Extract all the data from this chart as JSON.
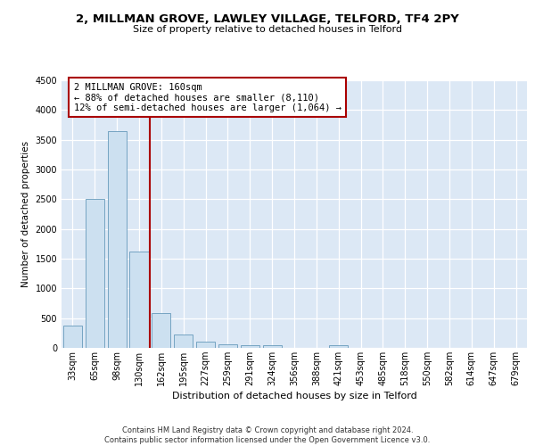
{
  "title": "2, MILLMAN GROVE, LAWLEY VILLAGE, TELFORD, TF4 2PY",
  "subtitle": "Size of property relative to detached houses in Telford",
  "xlabel": "Distribution of detached houses by size in Telford",
  "ylabel": "Number of detached properties",
  "categories": [
    "33sqm",
    "65sqm",
    "98sqm",
    "130sqm",
    "162sqm",
    "195sqm",
    "227sqm",
    "259sqm",
    "291sqm",
    "324sqm",
    "356sqm",
    "388sqm",
    "421sqm",
    "453sqm",
    "485sqm",
    "518sqm",
    "550sqm",
    "582sqm",
    "614sqm",
    "647sqm",
    "679sqm"
  ],
  "values": [
    370,
    2500,
    3650,
    1620,
    580,
    220,
    110,
    60,
    45,
    40,
    0,
    0,
    50,
    0,
    0,
    0,
    0,
    0,
    0,
    0,
    0
  ],
  "bar_color": "#cce0f0",
  "bar_edge_color": "#6699bb",
  "vline_color": "#aa0000",
  "vline_pos": 3.5,
  "annotation_text": "2 MILLMAN GROVE: 160sqm\n← 88% of detached houses are smaller (8,110)\n12% of semi-detached houses are larger (1,064) →",
  "annotation_box_edgecolor": "#aa0000",
  "ylim_max": 4500,
  "yticks": [
    0,
    500,
    1000,
    1500,
    2000,
    2500,
    3000,
    3500,
    4000,
    4500
  ],
  "bg_color": "#dce8f5",
  "grid_color": "#ffffff",
  "footer_line1": "Contains HM Land Registry data © Crown copyright and database right 2024.",
  "footer_line2": "Contains public sector information licensed under the Open Government Licence v3.0."
}
